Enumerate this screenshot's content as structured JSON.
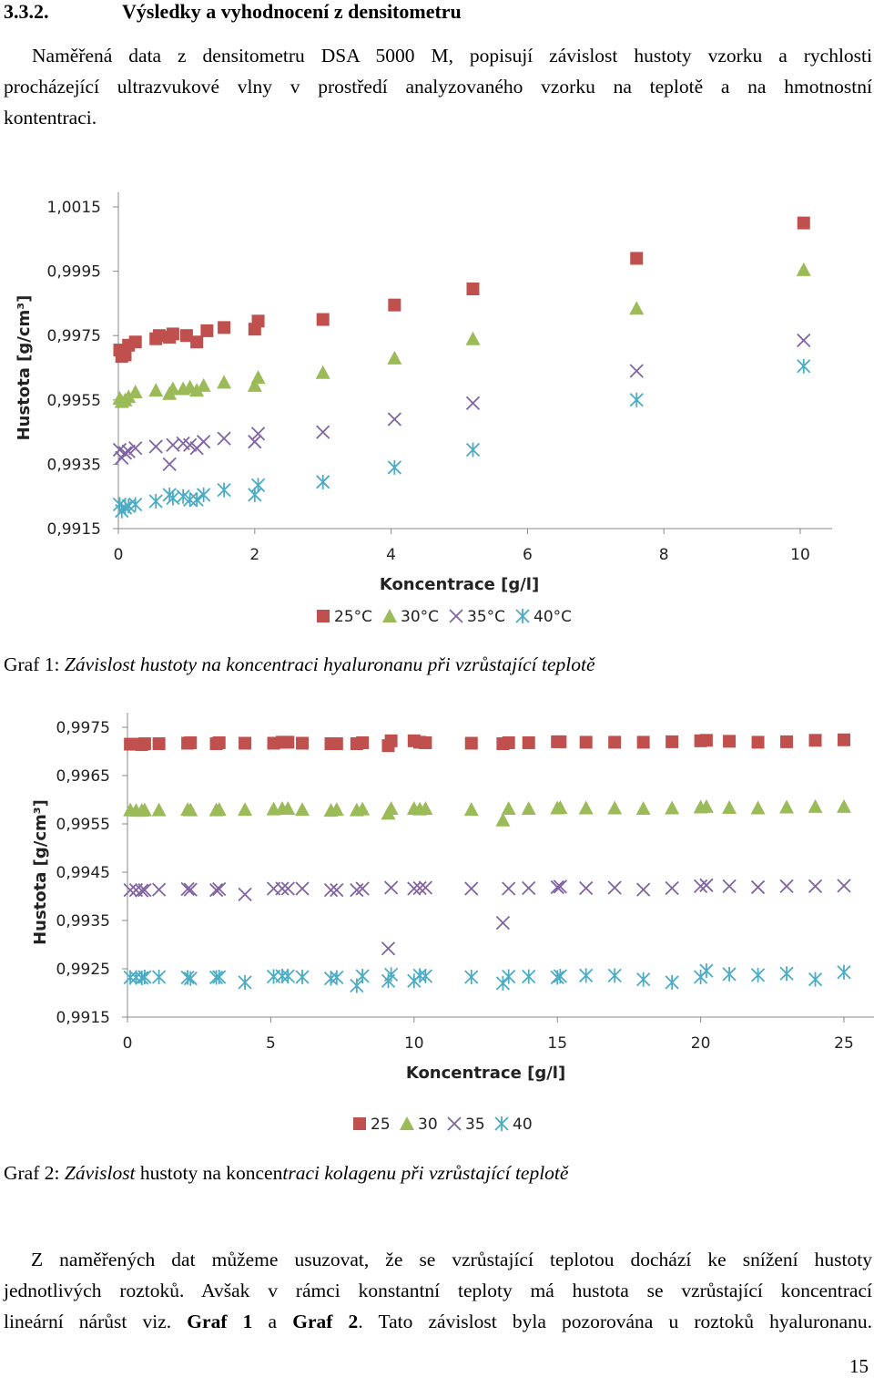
{
  "section": {
    "number": "3.3.2.",
    "title": "Výsledky a vyhodnocení z densitometru"
  },
  "intro_lines": [
    "Naměřená data z densitometru  DSA 5000 M, popisují závislost hustoty vzorku a rychlosti",
    "procházející ultrazvukové vlny v prostředí analyzovaného vzorku  na teplotě a na hmotnostní",
    "kontentraci."
  ],
  "colors": {
    "s25": "#C0504D",
    "s30": "#9BBB59",
    "s35": "#8064A2",
    "s40": "#4BACC6"
  },
  "chart_data": [
    {
      "type": "scatter",
      "title": "",
      "xlabel": "Koncentrace [g/l]",
      "ylabel": "Hustota [g/cm³]",
      "xlim": [
        0,
        10
      ],
      "ylim": [
        0.9915,
        1.0015
      ],
      "xticks": [
        "0",
        "2",
        "4",
        "6",
        "8",
        "10"
      ],
      "yticks": [
        "0,9915",
        "0,9935",
        "0,9955",
        "0,9975",
        "0,9995",
        "1,0015"
      ],
      "legend": [
        "25°C",
        "30°C",
        "35°C",
        "40°C"
      ],
      "legend_position": "bottom",
      "series": [
        {
          "name": "25°C",
          "marker": "square",
          "x": [
            0.02,
            0.05,
            0.1,
            0.15,
            0.25,
            0.55,
            0.6,
            0.75,
            0.8,
            1.0,
            1.15,
            1.3,
            1.55,
            2.0,
            2.05,
            3.0,
            4.05,
            5.2,
            7.6,
            10.05
          ],
          "y": [
            0.99705,
            0.99685,
            0.9969,
            0.9972,
            0.9973,
            0.9974,
            0.9975,
            0.99745,
            0.99755,
            0.9975,
            0.9973,
            0.99765,
            0.99775,
            0.9977,
            0.99795,
            0.998,
            0.99845,
            0.99895,
            0.9999,
            1.001
          ]
        },
        {
          "name": "30°C",
          "marker": "triangle",
          "x": [
            0.02,
            0.05,
            0.1,
            0.15,
            0.25,
            0.55,
            0.75,
            0.8,
            0.95,
            1.05,
            1.15,
            1.25,
            1.55,
            2.0,
            2.05,
            3.0,
            4.05,
            5.2,
            7.6,
            10.05
          ],
          "y": [
            0.99555,
            0.99545,
            0.9955,
            0.9956,
            0.99575,
            0.9958,
            0.9957,
            0.99585,
            0.99585,
            0.9959,
            0.9958,
            0.99595,
            0.99605,
            0.99595,
            0.9962,
            0.99635,
            0.9968,
            0.9974,
            0.99835,
            0.99955
          ]
        },
        {
          "name": "35°C",
          "marker": "x",
          "x": [
            0.02,
            0.05,
            0.1,
            0.15,
            0.25,
            0.55,
            0.75,
            0.8,
            0.95,
            1.05,
            1.15,
            1.25,
            1.55,
            2.0,
            2.05,
            3.0,
            4.05,
            5.2,
            7.6,
            10.05
          ],
          "y": [
            0.99395,
            0.9937,
            0.99385,
            0.9939,
            0.994,
            0.99405,
            0.9935,
            0.9941,
            0.99415,
            0.9941,
            0.994,
            0.9942,
            0.9943,
            0.9942,
            0.99445,
            0.9945,
            0.9949,
            0.9954,
            0.9964,
            0.99735
          ]
        },
        {
          "name": "40°C",
          "marker": "asterisk",
          "x": [
            0.02,
            0.05,
            0.1,
            0.15,
            0.25,
            0.55,
            0.75,
            0.8,
            0.95,
            1.05,
            1.15,
            1.25,
            1.55,
            2.0,
            2.05,
            3.0,
            4.05,
            5.2,
            7.6,
            10.05
          ],
          "y": [
            0.99225,
            0.99205,
            0.99215,
            0.9922,
            0.99225,
            0.99235,
            0.99255,
            0.99245,
            0.9925,
            0.9924,
            0.9924,
            0.99255,
            0.9927,
            0.99255,
            0.99285,
            0.99295,
            0.9934,
            0.99395,
            0.9955,
            0.99655
          ]
        }
      ]
    },
    {
      "type": "scatter",
      "title": "",
      "xlabel": "Koncentrace [g/l]",
      "ylabel": "Hustota  [g/cm³]",
      "xlim": [
        0,
        25
      ],
      "ylim": [
        0.9915,
        0.9975
      ],
      "xticks": [
        "0",
        "5",
        "10",
        "15",
        "20",
        "25"
      ],
      "yticks": [
        "0,9915",
        "0,9925",
        "0,9935",
        "0,9945",
        "0,9955",
        "0,9965",
        "0,9975"
      ],
      "legend": [
        "25",
        "30",
        "35",
        "40"
      ],
      "legend_position": "bottom",
      "x": [
        0.1,
        0.3,
        0.5,
        0.6,
        1.1,
        2.1,
        2.2,
        3.1,
        3.2,
        4.1,
        5.1,
        5.4,
        5.6,
        6.1,
        7.1,
        7.3,
        8.0,
        8.2,
        9.1,
        9.2,
        10.0,
        10.2,
        10.4,
        12.0,
        13.1,
        13.3,
        14.0,
        15.0,
        15.1,
        16.0,
        17.0,
        18.0,
        19.0,
        20.0,
        20.2,
        21.0,
        22.0,
        23.0,
        24.0,
        25.0
      ],
      "series": [
        {
          "name": "25",
          "marker": "square",
          "y": [
            0.99715,
            0.99715,
            0.99714,
            0.99716,
            0.99716,
            0.99717,
            0.99718,
            0.99716,
            0.99718,
            0.99717,
            0.99717,
            0.99719,
            0.99719,
            0.99717,
            0.99716,
            0.99716,
            0.99716,
            0.99718,
            0.99712,
            0.99722,
            0.99722,
            0.99719,
            0.99718,
            0.99717,
            0.99716,
            0.99718,
            0.99718,
            0.9972,
            0.9972,
            0.99719,
            0.99719,
            0.99719,
            0.9972,
            0.99722,
            0.99723,
            0.99721,
            0.99719,
            0.9972,
            0.99723,
            0.99724
          ]
        },
        {
          "name": "30",
          "marker": "triangle",
          "y": [
            0.99579,
            0.99578,
            0.99578,
            0.99579,
            0.99579,
            0.9958,
            0.99579,
            0.99579,
            0.9958,
            0.9958,
            0.99581,
            0.99582,
            0.99582,
            0.9958,
            0.99578,
            0.9958,
            0.99579,
            0.99581,
            0.99572,
            0.99582,
            0.99582,
            0.99581,
            0.99582,
            0.9958,
            0.99558,
            0.99582,
            0.99582,
            0.99583,
            0.99584,
            0.99583,
            0.99583,
            0.99582,
            0.99583,
            0.99585,
            0.99586,
            0.99584,
            0.99583,
            0.99585,
            0.99586,
            0.99586
          ]
        },
        {
          "name": "35",
          "marker": "x",
          "y": [
            0.99413,
            0.99413,
            0.99412,
            0.99413,
            0.99414,
            0.99415,
            0.99414,
            0.99413,
            0.99415,
            0.99404,
            0.99416,
            0.99416,
            0.99416,
            0.99416,
            0.99413,
            0.99413,
            0.99413,
            0.99416,
            0.99292,
            0.99418,
            0.99416,
            0.99417,
            0.99418,
            0.99416,
            0.99345,
            0.99416,
            0.99417,
            0.99419,
            0.9942,
            0.99417,
            0.99418,
            0.99414,
            0.99417,
            0.99421,
            0.99423,
            0.99421,
            0.99419,
            0.99421,
            0.99421,
            0.99422
          ]
        },
        {
          "name": "40",
          "marker": "asterisk",
          "y": [
            0.99232,
            0.99232,
            0.99231,
            0.99233,
            0.99233,
            0.99232,
            0.9923,
            0.99232,
            0.99233,
            0.99222,
            0.99234,
            0.99235,
            0.99235,
            0.99233,
            0.9923,
            0.99232,
            0.99215,
            0.99235,
            0.99225,
            0.99238,
            0.99225,
            0.99236,
            0.99235,
            0.99233,
            0.9922,
            0.99234,
            0.99234,
            0.99232,
            0.99235,
            0.99236,
            0.99236,
            0.99228,
            0.99222,
            0.99233,
            0.99246,
            0.99239,
            0.99237,
            0.9924,
            0.99228,
            0.99243
          ]
        }
      ]
    }
  ],
  "caption1": {
    "label": "Graf 1:",
    "text": "Závislost hustoty na koncentraci hyaluronanu při vzrůstající teplotě"
  },
  "caption2": {
    "label": "Graf 2:",
    "word1": "Závislost",
    "mid1": "hustoty na koncen",
    "italic2": "traci kolagenu při vzrůstající teplotě"
  },
  "conclusion": {
    "line1": "Z naměřených dat můžeme usuzovat, že se vzrůstající teplotou dochází ke snížení hustoty",
    "line2": "jednotlivých roztoků. Avšak v rámci konstantní teploty má hustota se vzrůstající koncentrací",
    "line3_a": "lineární nárůst viz.",
    "ref1": "Graf 1",
    "and": "a",
    "ref2": "Graf 2",
    "line3_b": ". Tato závislost byla pozorována u roztoků hyaluronanu."
  },
  "page_number": "15"
}
